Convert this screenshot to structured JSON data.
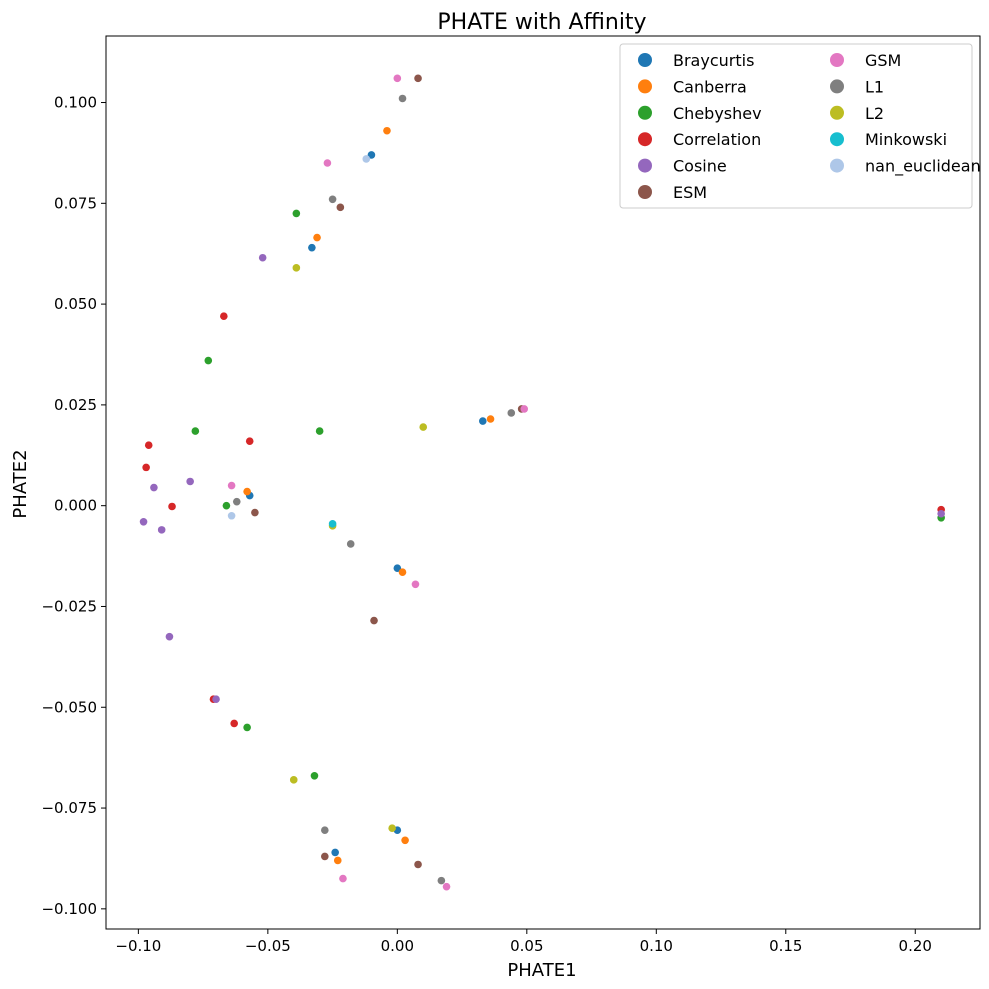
{
  "chart_data": {
    "type": "scatter",
    "title": "PHATE with Affinity",
    "xlabel": "PHATE1",
    "ylabel": "PHATE2",
    "xlim": [
      -0.1125,
      0.225
    ],
    "ylim": [
      -0.105,
      0.1165
    ],
    "xticks": [
      -0.1,
      -0.05,
      0.0,
      0.05,
      0.1,
      0.15,
      0.2
    ],
    "xtick_labels": [
      "−0.10",
      "−0.05",
      "0.00",
      "0.05",
      "0.10",
      "0.15",
      "0.20"
    ],
    "yticks": [
      -0.1,
      -0.075,
      -0.05,
      -0.025,
      0.0,
      0.025,
      0.05,
      0.075,
      0.1
    ],
    "ytick_labels": [
      "−0.100",
      "−0.075",
      "−0.050",
      "−0.025",
      "0.000",
      "0.025",
      "0.050",
      "0.075",
      "0.100"
    ],
    "grid": false,
    "legend_position": "top-right",
    "legend_columns": 2,
    "series": [
      {
        "name": "Braycurtis",
        "color": "#1f77b4",
        "points": [
          [
            -0.01,
            0.087
          ],
          [
            -0.033,
            0.064
          ],
          [
            0.033,
            0.021
          ],
          [
            -0.057,
            0.0025
          ],
          [
            0.0,
            -0.0155
          ],
          [
            -0.024,
            -0.086
          ],
          [
            0.0,
            -0.0805
          ]
        ]
      },
      {
        "name": "Canberra",
        "color": "#ff7f0e",
        "points": [
          [
            -0.004,
            0.093
          ],
          [
            -0.031,
            0.0665
          ],
          [
            0.036,
            0.0215
          ],
          [
            -0.058,
            0.0035
          ],
          [
            0.002,
            -0.0165
          ],
          [
            -0.023,
            -0.088
          ],
          [
            0.003,
            -0.083
          ]
        ]
      },
      {
        "name": "Chebyshev",
        "color": "#2ca02c",
        "points": [
          [
            -0.039,
            0.0725
          ],
          [
            -0.073,
            0.036
          ],
          [
            -0.078,
            0.0185
          ],
          [
            -0.03,
            0.0185
          ],
          [
            -0.066,
            0.0
          ],
          [
            -0.058,
            -0.055
          ],
          [
            -0.032,
            -0.067
          ],
          [
            0.21,
            -0.003
          ]
        ]
      },
      {
        "name": "Correlation",
        "color": "#d62728",
        "points": [
          [
            -0.067,
            0.047
          ],
          [
            -0.096,
            0.015
          ],
          [
            -0.057,
            0.016
          ],
          [
            -0.097,
            0.0095
          ],
          [
            -0.087,
            -0.0002
          ],
          [
            -0.071,
            -0.048
          ],
          [
            -0.063,
            -0.054
          ],
          [
            0.21,
            -0.001
          ]
        ]
      },
      {
        "name": "Cosine",
        "color": "#9467bd",
        "points": [
          [
            -0.052,
            0.0615
          ],
          [
            -0.08,
            0.006
          ],
          [
            -0.094,
            0.0045
          ],
          [
            -0.098,
            -0.004
          ],
          [
            -0.091,
            -0.006
          ],
          [
            -0.088,
            -0.0325
          ],
          [
            -0.07,
            -0.048
          ],
          [
            0.21,
            -0.002
          ]
        ]
      },
      {
        "name": "ESM",
        "color": "#8c564b",
        "points": [
          [
            0.008,
            0.106
          ],
          [
            -0.022,
            0.074
          ],
          [
            0.048,
            0.024
          ],
          [
            -0.055,
            -0.0017
          ],
          [
            -0.009,
            -0.0285
          ],
          [
            -0.028,
            -0.087
          ],
          [
            0.008,
            -0.089
          ]
        ]
      },
      {
        "name": "GSM",
        "color": "#e377c2",
        "points": [
          [
            0.0,
            0.106
          ],
          [
            -0.027,
            0.085
          ],
          [
            0.049,
            0.024
          ],
          [
            -0.064,
            0.005
          ],
          [
            0.007,
            -0.0195
          ],
          [
            -0.021,
            -0.0925
          ],
          [
            0.019,
            -0.0945
          ]
        ]
      },
      {
        "name": "L1",
        "color": "#7f7f7f",
        "points": [
          [
            0.002,
            0.101
          ],
          [
            -0.025,
            0.076
          ],
          [
            0.044,
            0.023
          ],
          [
            -0.062,
            0.001
          ],
          [
            -0.018,
            -0.0095
          ],
          [
            -0.028,
            -0.0805
          ],
          [
            0.017,
            -0.093
          ]
        ]
      },
      {
        "name": "L2",
        "color": "#bcbd22",
        "points": [
          [
            -0.039,
            0.059
          ],
          [
            0.01,
            0.0195
          ],
          [
            -0.025,
            -0.005
          ],
          [
            -0.04,
            -0.068
          ],
          [
            -0.002,
            -0.08
          ]
        ]
      },
      {
        "name": "Minkowski",
        "color": "#17becf",
        "points": [
          [
            -0.025,
            -0.0045
          ]
        ]
      },
      {
        "name": "nan_euclidean",
        "color": "#aec7e8",
        "points": [
          [
            -0.012,
            0.086
          ],
          [
            -0.064,
            -0.0025
          ]
        ]
      }
    ]
  }
}
